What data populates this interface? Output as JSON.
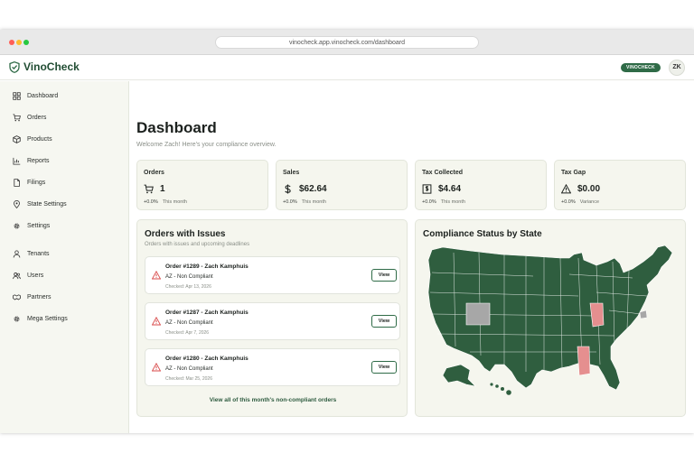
{
  "browser": {
    "url": "vinocheck.app.vinocheck.com/dashboard"
  },
  "header": {
    "app_name": "VinoCheck",
    "badge": "VINOCHECK",
    "avatar_initials": "ZK"
  },
  "sidebar": {
    "items": [
      {
        "label": "Dashboard",
        "icon": "dashboard-icon"
      },
      {
        "label": "Orders",
        "icon": "cart-icon"
      },
      {
        "label": "Products",
        "icon": "box-icon"
      },
      {
        "label": "Reports",
        "icon": "chart-icon"
      },
      {
        "label": "Filings",
        "icon": "file-icon"
      },
      {
        "label": "State Settings",
        "icon": "pin-icon"
      },
      {
        "label": "Settings",
        "icon": "gear-icon"
      },
      {
        "label": "Tenants",
        "icon": "person-icon"
      },
      {
        "label": "Users",
        "icon": "users-icon"
      },
      {
        "label": "Partners",
        "icon": "handshake-icon"
      },
      {
        "label": "Mega Settings",
        "icon": "gear-icon"
      }
    ]
  },
  "page": {
    "title": "Dashboard",
    "subtitle": "Welcome Zach! Here's your compliance overview."
  },
  "stats": [
    {
      "label": "Orders",
      "value": "1",
      "change": "+0.0%",
      "period": "This month",
      "icon": "cart-icon"
    },
    {
      "label": "Sales",
      "value": "$62.64",
      "change": "+0.0%",
      "period": "This month",
      "icon": "dollar-icon"
    },
    {
      "label": "Tax Collected",
      "value": "$4.64",
      "change": "+0.0%",
      "period": "This month",
      "icon": "receipt-icon"
    },
    {
      "label": "Tax Gap",
      "value": "$0.00",
      "change": "+0.0%",
      "period": "Variance",
      "icon": "warning-icon"
    }
  ],
  "issues": {
    "title": "Orders with Issues",
    "subtitle": "Orders with issues and upcoming deadlines",
    "orders": [
      {
        "title": "Order #1289 - Zach Kamphuis",
        "status": "AZ - Non Compliant",
        "checked": "Checked: Apr 13, 2026",
        "button": "View"
      },
      {
        "title": "Order #1287 - Zach Kamphuis",
        "status": "AZ - Non Compliant",
        "checked": "Checked: Apr 7, 2026",
        "button": "View"
      },
      {
        "title": "Order #1280 - Zach Kamphuis",
        "status": "AZ - Non Compliant",
        "checked": "Checked: Mar 25, 2026",
        "button": "View"
      }
    ],
    "view_all": "View all of this month's non-compliant orders"
  },
  "compliance": {
    "title": "Compliance Status by State",
    "colors": {
      "compliant": "#2f5e3f",
      "non_compliant": "#e58f8f",
      "not_applicable": "#a7a7a7"
    }
  },
  "colors": {
    "accent": "#2f6b47",
    "brand_text": "#214d33",
    "panel": "#f5f6ee",
    "sidebar": "#f6f7f1",
    "warning": "#d94a4a"
  }
}
